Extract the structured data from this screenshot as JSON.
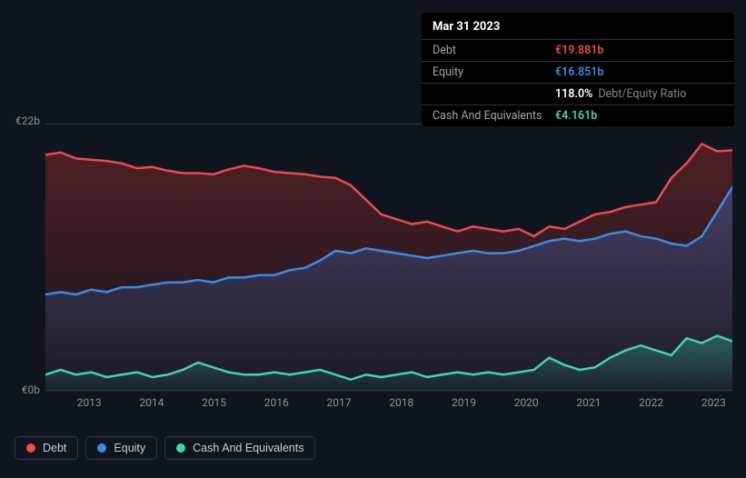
{
  "tooltip": {
    "date": "Mar 31 2023",
    "rows": [
      {
        "label": "Debt",
        "value": "€19.881b",
        "color": "#e84c4c"
      },
      {
        "label": "Equity",
        "value": "€16.851b",
        "color": "#3f8ae0"
      },
      {
        "label": "",
        "value": "118.0%",
        "color": "#ffffff",
        "extra": "Debt/Equity Ratio"
      },
      {
        "label": "Cash And Equivalents",
        "value": "€4.161b",
        "color": "#46d0b5"
      }
    ]
  },
  "chart": {
    "type": "area",
    "background": "#0f141f",
    "grid_color": "#2b3442",
    "y_axis": {
      "min": 0,
      "max": 22,
      "ticks": [
        0,
        22
      ],
      "labels": [
        "€0b",
        "€22b"
      ]
    },
    "x_axis": {
      "ticks": [
        2013,
        2014,
        2015,
        2016,
        2017,
        2018,
        2019,
        2020,
        2021,
        2022,
        2023
      ],
      "label_fontsize": 12
    },
    "series": [
      {
        "name": "Debt",
        "stroke": "#e84c4c",
        "fill_from": "rgba(130,40,40,0.55)",
        "fill_to": "rgba(130,40,40,0.05)",
        "stroke_width": 2.5,
        "values": [
          19.5,
          19.7,
          19.2,
          19.1,
          19.0,
          18.8,
          18.4,
          18.5,
          18.2,
          18.0,
          18.0,
          17.9,
          18.3,
          18.6,
          18.4,
          18.1,
          18.0,
          17.9,
          17.7,
          17.6,
          17.0,
          15.8,
          14.6,
          14.2,
          13.8,
          14.0,
          13.6,
          13.2,
          13.6,
          13.4,
          13.2,
          13.4,
          12.8,
          13.6,
          13.4,
          14.0,
          14.6,
          14.8,
          15.2,
          15.4,
          15.6,
          17.6,
          18.8,
          20.4,
          19.8,
          19.881
        ]
      },
      {
        "name": "Equity",
        "stroke": "#3f8ae0",
        "fill_from": "rgba(60,90,150,0.55)",
        "fill_to": "rgba(60,90,150,0.05)",
        "stroke_width": 2.5,
        "values": [
          8.0,
          8.2,
          8.0,
          8.4,
          8.2,
          8.6,
          8.6,
          8.8,
          9.0,
          9.0,
          9.2,
          9.0,
          9.4,
          9.4,
          9.6,
          9.6,
          10.0,
          10.2,
          10.8,
          11.6,
          11.4,
          11.8,
          11.6,
          11.4,
          11.2,
          11.0,
          11.2,
          11.4,
          11.6,
          11.4,
          11.4,
          11.6,
          12.0,
          12.4,
          12.6,
          12.4,
          12.6,
          13.0,
          13.2,
          12.8,
          12.6,
          12.2,
          12.0,
          12.8,
          14.8,
          16.851
        ]
      },
      {
        "name": "Cash And Equivalents",
        "stroke": "#46d0b5",
        "fill_from": "rgba(50,140,125,0.55)",
        "fill_to": "rgba(50,140,125,0.05)",
        "stroke_width": 2.5,
        "values": [
          1.4,
          1.8,
          1.4,
          1.6,
          1.2,
          1.4,
          1.6,
          1.2,
          1.4,
          1.8,
          2.4,
          2.0,
          1.6,
          1.4,
          1.4,
          1.6,
          1.4,
          1.6,
          1.8,
          1.4,
          1.0,
          1.4,
          1.2,
          1.4,
          1.6,
          1.2,
          1.4,
          1.6,
          1.4,
          1.6,
          1.4,
          1.6,
          1.8,
          2.8,
          2.2,
          1.8,
          2.0,
          2.8,
          3.4,
          3.8,
          3.4,
          3.0,
          4.4,
          4.0,
          4.6,
          4.161
        ]
      }
    ]
  },
  "legend": {
    "items": [
      {
        "label": "Debt",
        "color": "#e84c4c"
      },
      {
        "label": "Equity",
        "color": "#3f8ae0"
      },
      {
        "label": "Cash And Equivalents",
        "color": "#46d0b5"
      }
    ]
  }
}
